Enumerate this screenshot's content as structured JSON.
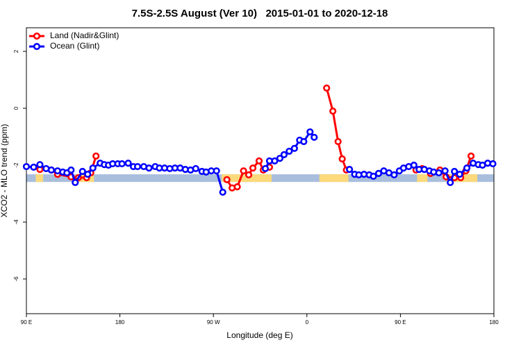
{
  "chart_data": {
    "type": "line",
    "title": "7.5S-2.5S August (Ver 10)   2015-01-01 to 2020-12-18",
    "x_label": "Longitude (deg E)",
    "y_label": "XCO2 - MLO trend (ppm)",
    "xlim": [
      90,
      540
    ],
    "xticks": [
      {
        "value": 90,
        "label": "90 E"
      },
      {
        "value": 180,
        "label": "180"
      },
      {
        "value": 270,
        "label": "90 W"
      },
      {
        "value": 360,
        "label": "0"
      },
      {
        "value": 450,
        "label": "90 E"
      },
      {
        "value": 540,
        "label": "180"
      }
    ],
    "ylim": [
      -7.22,
      2.83
    ],
    "yticks": [
      -6,
      -4,
      -2,
      0,
      2
    ],
    "band_ylim": [
      -2.59,
      -2.32
    ],
    "band_color": "#a9bedd",
    "land_color": "#fcd97b",
    "land_ranges": [
      [
        99,
        106
      ],
      [
        138,
        155
      ],
      [
        278,
        326
      ],
      [
        372,
        400
      ],
      [
        466,
        476
      ],
      [
        494,
        524
      ]
    ],
    "legend": "top-left",
    "series": [
      {
        "name": "Land (Nadir&Glint)",
        "color": "#ff0000",
        "x": [
          103,
          114,
          120,
          133,
          140,
          148,
          152,
          157,
          null,
          283,
          288,
          293,
          299,
          304,
          308,
          314,
          318,
          324,
          null,
          379,
          385,
          390,
          394,
          398,
          null,
          465,
          471,
          479,
          488,
          494,
          502,
          508,
          513,
          518
        ],
        "values": [
          -2.15,
          -2.17,
          -2.32,
          -2.41,
          -2.44,
          -2.44,
          -2.27,
          -1.68,
          null,
          -2.51,
          -2.8,
          -2.76,
          -2.2,
          -2.34,
          -2.1,
          -1.85,
          -2.17,
          -2.07,
          null,
          0.71,
          -0.1,
          -1.17,
          -1.78,
          -2.17,
          null,
          -2.17,
          -2.12,
          -2.29,
          -2.17,
          -2.41,
          -2.44,
          -2.44,
          -2.2,
          -1.68
        ]
      },
      {
        "name": "Ocean (Glint)",
        "color": "#0000ff",
        "x": [
          90,
          97,
          103,
          109,
          114,
          120,
          125,
          129,
          133,
          137,
          144,
          149,
          154,
          161,
          165,
          169,
          173,
          178,
          182,
          188,
          193,
          197,
          203,
          208,
          214,
          218,
          223,
          228,
          233,
          238,
          243,
          248,
          253,
          259,
          263,
          268,
          273,
          279,
          null,
          320,
          324,
          329,
          334,
          338,
          343,
          348,
          353,
          357,
          363,
          367,
          null,
          401,
          406,
          410,
          415,
          420,
          424,
          429,
          434,
          439,
          444,
          449,
          453,
          458,
          463,
          468,
          473,
          478,
          482,
          487,
          493,
          498,
          502,
          507,
          514,
          520,
          525,
          529,
          534,
          539
        ],
        "values": [
          -2.05,
          -2.07,
          -1.98,
          -2.12,
          -2.17,
          -2.2,
          -2.24,
          -2.27,
          -2.17,
          -2.61,
          -2.22,
          -2.32,
          -2.1,
          -1.93,
          -1.98,
          -2.0,
          -1.95,
          -1.95,
          -1.95,
          -1.93,
          -2.05,
          -2.05,
          -2.05,
          -2.1,
          -2.05,
          -2.1,
          -2.1,
          -2.12,
          -2.1,
          -2.1,
          -2.15,
          -2.17,
          -2.12,
          -2.22,
          -2.24,
          -2.2,
          -2.2,
          -2.95,
          null,
          -2.12,
          -1.85,
          -1.85,
          -1.76,
          -1.63,
          -1.51,
          -1.41,
          -1.12,
          -1.17,
          -0.83,
          -1.02,
          null,
          -2.15,
          -2.32,
          -2.34,
          -2.32,
          -2.34,
          -2.39,
          -2.29,
          -2.2,
          -2.27,
          -2.34,
          -2.2,
          -2.1,
          -2.05,
          -2.0,
          -2.15,
          -2.15,
          -2.2,
          -2.24,
          -2.27,
          -2.2,
          -2.61,
          -2.22,
          -2.32,
          -2.1,
          -1.93,
          -1.98,
          -2.0,
          -1.93,
          -1.95
        ]
      }
    ]
  }
}
